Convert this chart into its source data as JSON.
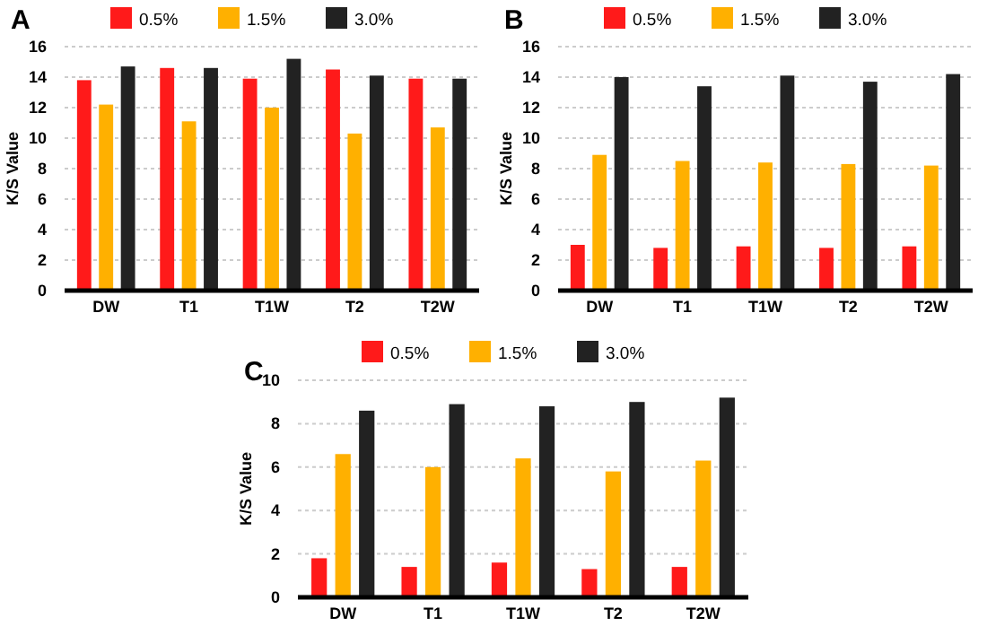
{
  "chart_data": [
    {
      "type": "bar",
      "title": "A",
      "ylabel": "K/S Value",
      "categories": [
        "DW",
        "T1",
        "T1W",
        "T2",
        "T2W"
      ],
      "ylim": [
        0,
        16
      ],
      "yticks": [
        0,
        2,
        4,
        6,
        8,
        10,
        12,
        14,
        16
      ],
      "grid": "y",
      "legend": "top",
      "series": [
        {
          "name": "0.5%",
          "color": "#ff1a1a",
          "values": [
            13.8,
            14.6,
            13.9,
            14.5,
            13.9
          ]
        },
        {
          "name": "1.5%",
          "color": "#ffb000",
          "values": [
            12.2,
            11.1,
            12.0,
            10.3,
            10.7
          ]
        },
        {
          "name": "3.0%",
          "color": "#222222",
          "values": [
            14.7,
            14.6,
            15.2,
            14.1,
            13.9
          ]
        }
      ]
    },
    {
      "type": "bar",
      "title": "B",
      "ylabel": "K/S Value",
      "categories": [
        "DW",
        "T1",
        "T1W",
        "T2",
        "T2W"
      ],
      "ylim": [
        0,
        16
      ],
      "yticks": [
        0,
        2,
        4,
        6,
        8,
        10,
        12,
        14,
        16
      ],
      "grid": "y",
      "legend": "top",
      "series": [
        {
          "name": "0.5%",
          "color": "#ff1a1a",
          "values": [
            3.0,
            2.8,
            2.9,
            2.8,
            2.9
          ]
        },
        {
          "name": "1.5%",
          "color": "#ffb000",
          "values": [
            8.9,
            8.5,
            8.4,
            8.3,
            8.2
          ]
        },
        {
          "name": "3.0%",
          "color": "#222222",
          "values": [
            14.0,
            13.4,
            14.1,
            13.7,
            14.2
          ]
        }
      ]
    },
    {
      "type": "bar",
      "title": "C",
      "ylabel": "K/S Value",
      "categories": [
        "DW",
        "T1",
        "T1W",
        "T2",
        "T2W"
      ],
      "ylim": [
        0,
        10
      ],
      "yticks": [
        0,
        2,
        4,
        6,
        8,
        10
      ],
      "grid": "y",
      "legend": "top",
      "series": [
        {
          "name": "0.5%",
          "color": "#ff1a1a",
          "values": [
            1.8,
            1.4,
            1.6,
            1.3,
            1.4
          ]
        },
        {
          "name": "1.5%",
          "color": "#ffb000",
          "values": [
            6.6,
            6.0,
            6.4,
            5.8,
            6.3
          ]
        },
        {
          "name": "3.0%",
          "color": "#222222",
          "values": [
            8.6,
            8.9,
            8.8,
            9.0,
            9.2
          ]
        }
      ]
    }
  ]
}
